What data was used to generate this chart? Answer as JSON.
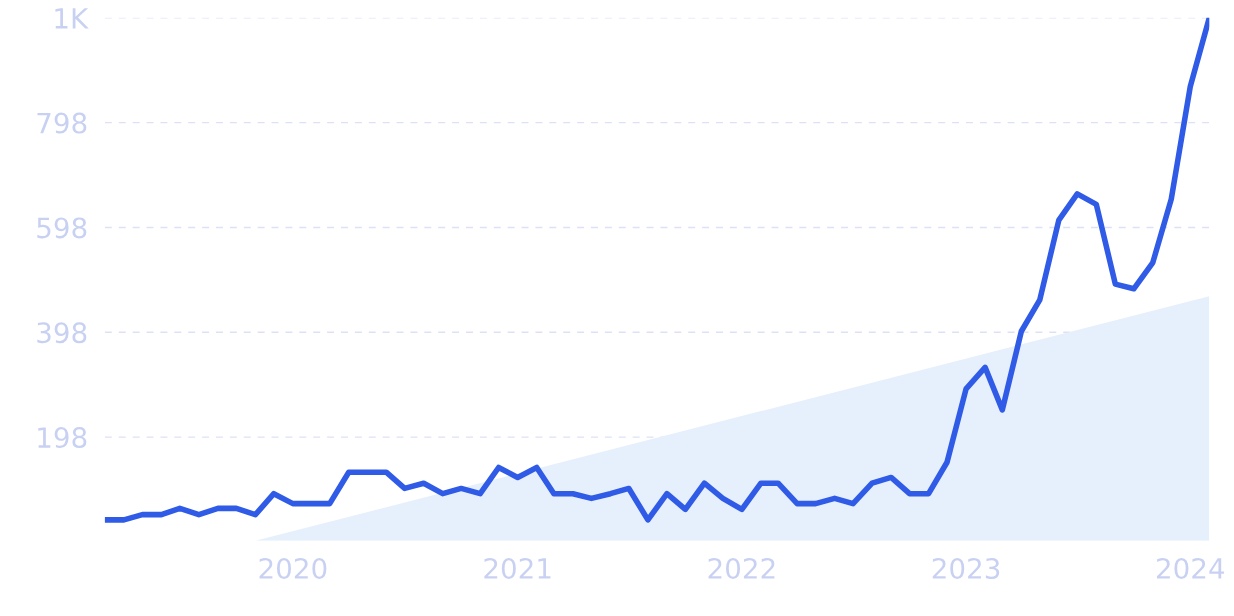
{
  "chart_data": {
    "type": "line",
    "x": [
      "2019-03",
      "2019-04",
      "2019-05",
      "2019-06",
      "2019-07",
      "2019-08",
      "2019-09",
      "2019-10",
      "2019-11",
      "2019-12",
      "2020-01",
      "2020-02",
      "2020-03",
      "2020-04",
      "2020-05",
      "2020-06",
      "2020-07",
      "2020-08",
      "2020-09",
      "2020-10",
      "2020-11",
      "2020-12",
      "2021-01",
      "2021-02",
      "2021-03",
      "2021-04",
      "2021-05",
      "2021-06",
      "2021-07",
      "2021-08",
      "2021-09",
      "2021-10",
      "2021-11",
      "2021-12",
      "2022-01",
      "2022-02",
      "2022-03",
      "2022-04",
      "2022-05",
      "2022-06",
      "2022-07",
      "2022-08",
      "2022-09",
      "2022-10",
      "2022-11",
      "2022-12",
      "2023-01",
      "2023-02",
      "2023-03",
      "2023-04",
      "2023-05",
      "2023-06",
      "2023-07",
      "2023-08",
      "2023-09",
      "2023-10",
      "2023-11",
      "2023-12",
      "2024-01",
      "2024-02"
    ],
    "series": [
      {
        "type": "area",
        "color": "#e6effc",
        "x": [
          "2019-11",
          "2024-02"
        ],
        "values": [
          0,
          467
        ]
      },
      {
        "color": "#2f5be6",
        "values": [
          40,
          40,
          50,
          50,
          62,
          50,
          62,
          62,
          50,
          90,
          71,
          71,
          71,
          131,
          131,
          131,
          100,
          110,
          90,
          100,
          90,
          140,
          121,
          140,
          90,
          90,
          81,
          90,
          100,
          40,
          90,
          60,
          110,
          81,
          60,
          110,
          110,
          71,
          71,
          81,
          71,
          110,
          121,
          90,
          90,
          150,
          290,
          331,
          250,
          400,
          460,
          612,
          662,
          642,
          490,
          481,
          531,
          652,
          867,
          998
        ]
      }
    ],
    "xlim": [
      "2019-03",
      "2024-02"
    ],
    "xticks": [
      {
        "value": "2020-01",
        "label": "2020"
      },
      {
        "value": "2021-01",
        "label": "2021"
      },
      {
        "value": "2022-01",
        "label": "2022"
      },
      {
        "value": "2023-01",
        "label": "2023"
      },
      {
        "value": "2024-01",
        "label": "2024"
      }
    ],
    "ylim": [
      0,
      998
    ],
    "yticks": [
      198,
      398,
      598,
      798,
      {
        "value": 998,
        "label": "1K"
      }
    ],
    "grid": "y",
    "line_style": "solid",
    "marker": "none",
    "legend": false
  }
}
